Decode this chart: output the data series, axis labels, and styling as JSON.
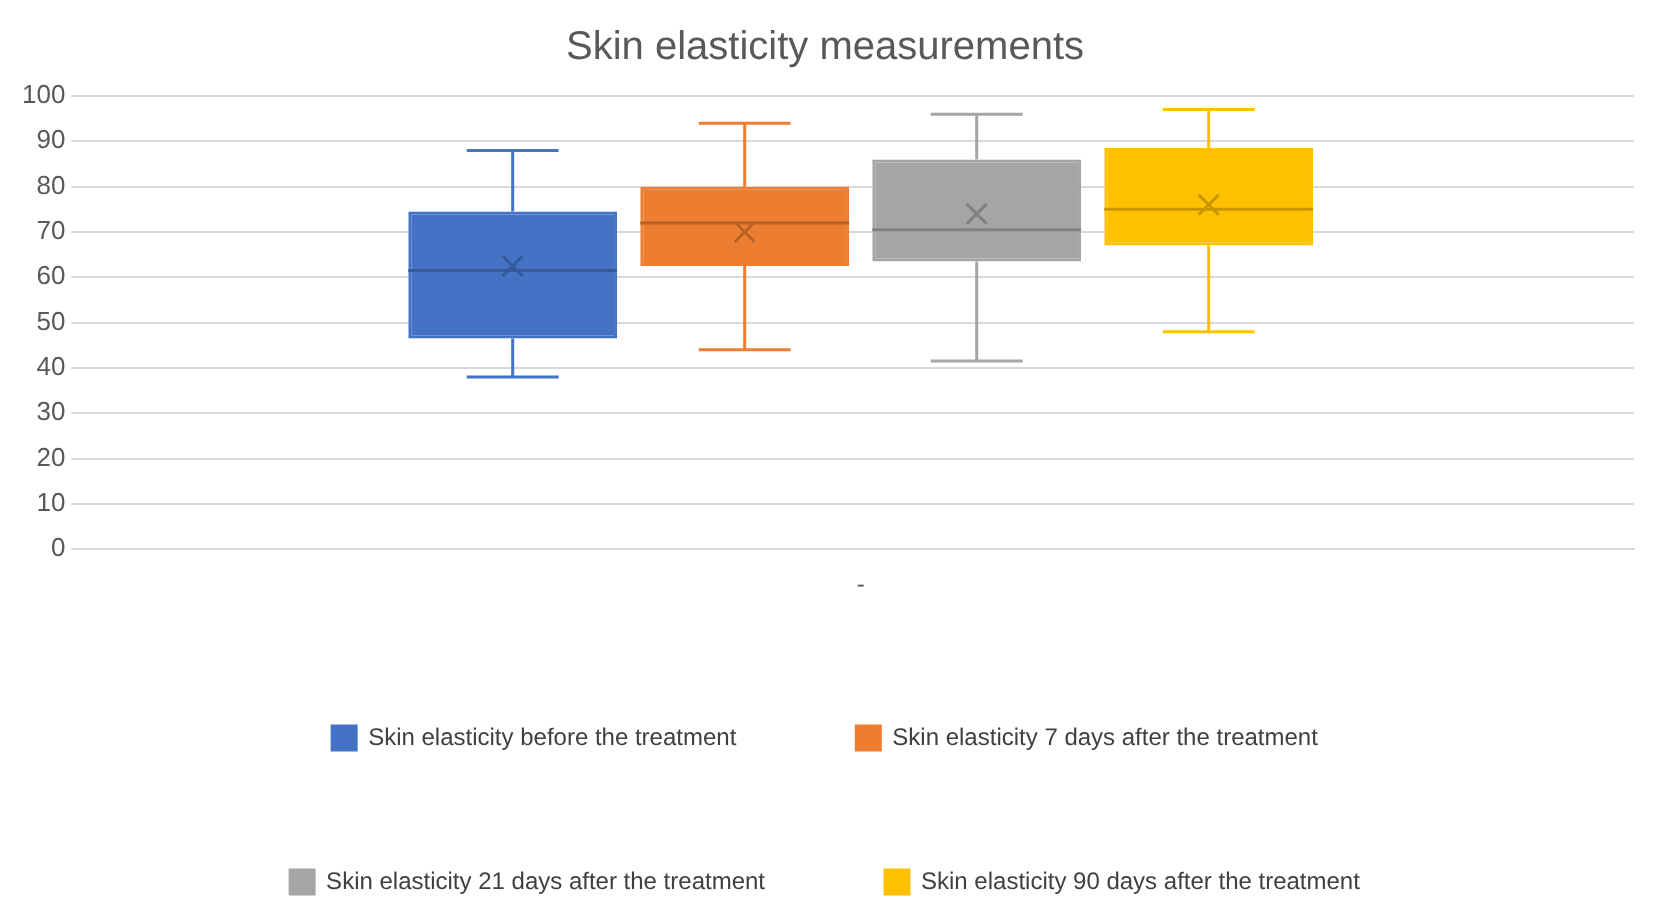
{
  "chart_data": {
    "type": "box",
    "title": "Skin elasticity measurements",
    "categories": [
      "-"
    ],
    "series": [
      {
        "name": "Skin elasticity before the treatment",
        "color": "#4472c4",
        "boxes": [
          {
            "low": 38,
            "q1": 46.5,
            "median": 61.5,
            "q3": 74.5,
            "high": 88,
            "mean": 62.5
          }
        ]
      },
      {
        "name": "Skin elasticity 7 days after the treatment",
        "color": "#ed7d31",
        "boxes": [
          {
            "low": 44,
            "q1": 62.5,
            "median": 72,
            "q3": 80,
            "high": 94,
            "mean": 70
          }
        ]
      },
      {
        "name": "Skin elasticity 21 days after the treatment",
        "color": "#a5a5a5",
        "boxes": [
          {
            "low": 41.5,
            "q1": 63.5,
            "median": 70.5,
            "q3": 86,
            "high": 96,
            "mean": 74
          }
        ]
      },
      {
        "name": "Skin elasticity 90 days after the treatment",
        "color": "#ffc000",
        "boxes": [
          {
            "low": 48,
            "q1": 67,
            "median": 75,
            "q3": 88.5,
            "high": 97,
            "mean": 76
          }
        ]
      }
    ],
    "ylim": [
      0,
      100
    ],
    "yticks": [
      0,
      10,
      20,
      30,
      40,
      50,
      60,
      70,
      80,
      90,
      100
    ],
    "grid": "y",
    "legend": "bottom"
  }
}
